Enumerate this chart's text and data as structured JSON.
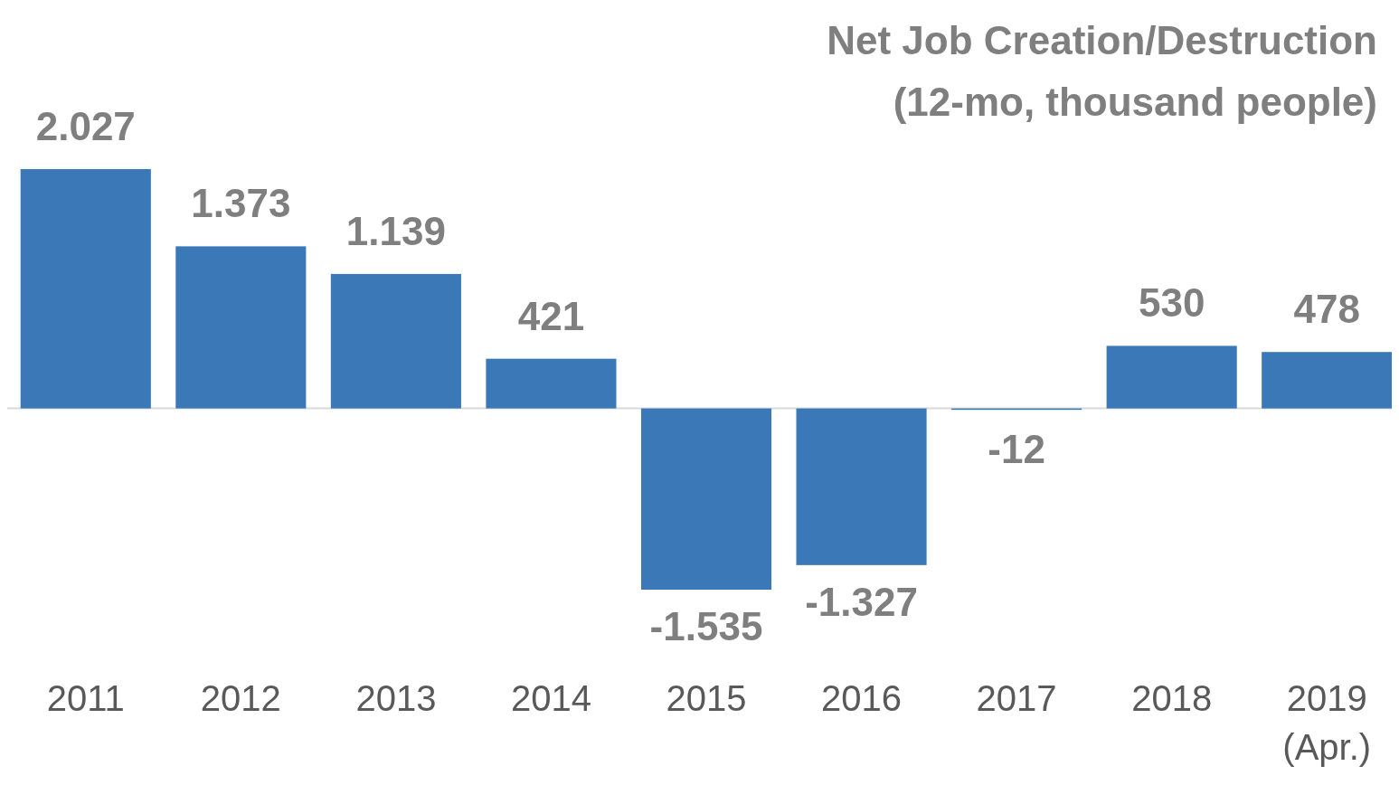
{
  "chart_data": {
    "type": "bar",
    "title": "Net Job Creation/Destruction\n(12-mo, thousand people)",
    "categories": [
      "2011",
      "2012",
      "2013",
      "2014",
      "2015",
      "2016",
      "2017",
      "2018",
      "2019\n(Apr.)"
    ],
    "values": [
      2027,
      1373,
      1139,
      421,
      -1535,
      -1327,
      -12,
      530,
      478
    ],
    "value_labels": [
      "2.027",
      "1.373",
      "1.139",
      "421",
      "-1.535",
      "-1.327",
      "-12",
      "530",
      "478"
    ],
    "color": "#3a78b8"
  }
}
